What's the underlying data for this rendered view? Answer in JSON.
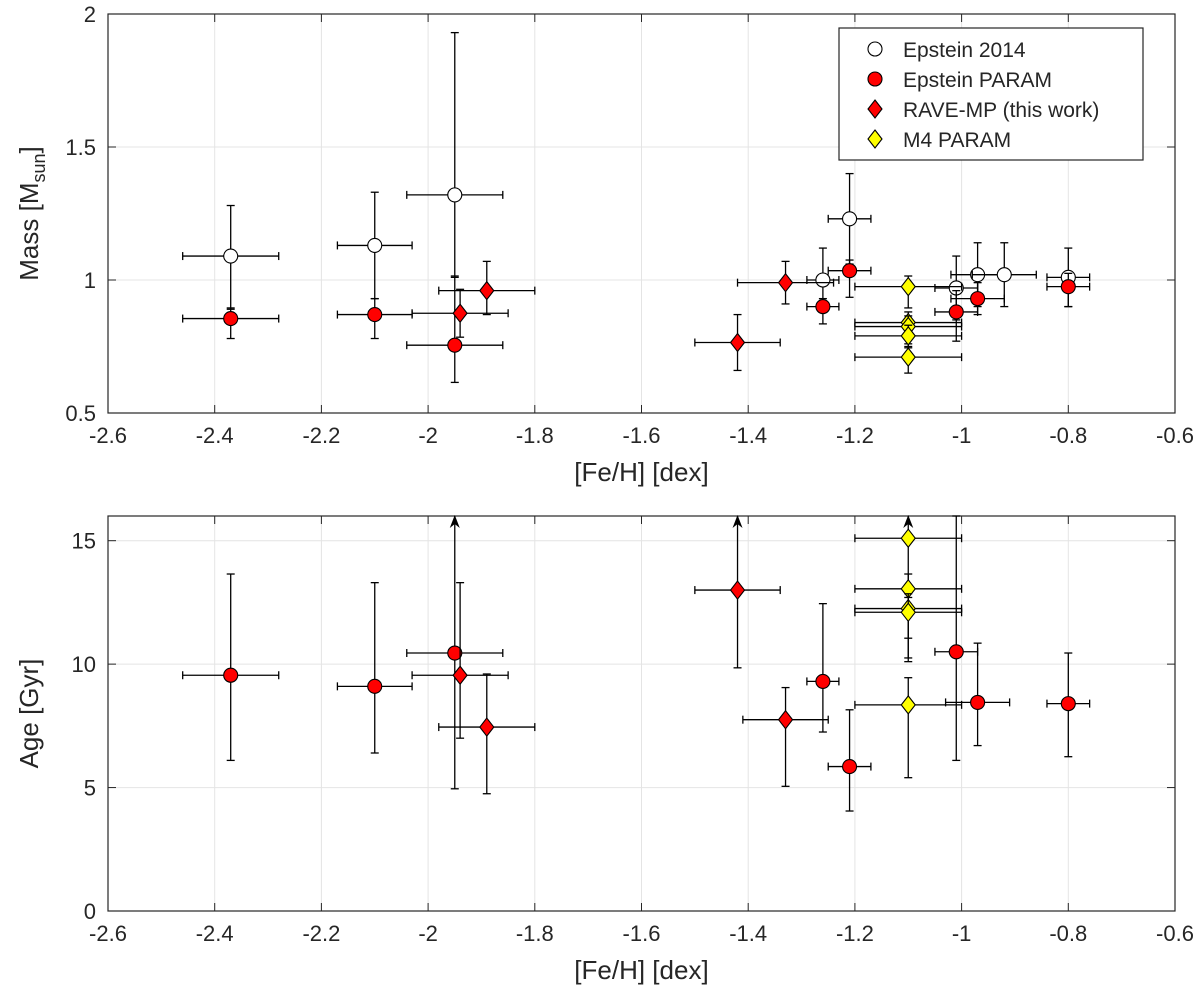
{
  "chart_data": [
    {
      "type": "scatter",
      "xlabel": "[Fe/H] [dex]",
      "ylabel": "Mass [M",
      "ylabel_sub": "sun",
      "ylabel_suffix": "]",
      "xlim": [
        -2.6,
        -0.6
      ],
      "ylim": [
        0.5,
        2
      ],
      "xticks": [
        -2.6,
        -2.4,
        -2.2,
        -2,
        -1.8,
        -1.6,
        -1.4,
        -1.2,
        -1,
        -0.8,
        -0.6
      ],
      "xtick_labels": [
        "-2.6",
        "-2.4",
        "-2.2",
        "-2",
        "-1.8",
        "-1.6",
        "-1.4",
        "-1.2",
        "-1",
        "-0.8",
        "-0.6"
      ],
      "yticks": [
        0.5,
        1,
        1.5,
        2
      ],
      "ytick_labels": [
        "0.5",
        "1",
        "1.5",
        "2"
      ],
      "grid": true,
      "legend_position": "top-right",
      "series": [
        {
          "name": "Epstein 2014",
          "marker": "circle",
          "color": "#ffffff",
          "points": [
            {
              "x": -2.37,
              "y": 1.09,
              "xerr": 0.09,
              "yerr_low": 0.2,
              "yerr_high": 0.19
            },
            {
              "x": -2.1,
              "y": 1.13,
              "xerr": 0.07,
              "yerr_low": 0.2,
              "yerr_high": 0.2
            },
            {
              "x": -1.95,
              "y": 1.32,
              "xerr": 0.09,
              "yerr_low": 0.31,
              "yerr_high": 0.61
            },
            {
              "x": -1.21,
              "y": 1.23,
              "xerr": 0.04,
              "yerr_low": 0.17,
              "yerr_high": 0.17
            },
            {
              "x": -1.26,
              "y": 1.0,
              "xerr": 0.03,
              "yerr_low": 0.12,
              "yerr_high": 0.12
            },
            {
              "x": -1.01,
              "y": 0.97,
              "xerr": 0.04,
              "yerr_low": 0.12,
              "yerr_high": 0.12
            },
            {
              "x": -0.97,
              "y": 1.02,
              "xerr": 0.05,
              "yerr_low": 0.12,
              "yerr_high": 0.12
            },
            {
              "x": -0.92,
              "y": 1.02,
              "xerr": 0.06,
              "yerr_low": 0.12,
              "yerr_high": 0.12
            },
            {
              "x": -0.8,
              "y": 1.01,
              "xerr": 0.04,
              "yerr_low": 0.11,
              "yerr_high": 0.11
            }
          ]
        },
        {
          "name": "Epstein PARAM",
          "marker": "circle",
          "color": "#ff0000",
          "points": [
            {
              "x": -2.37,
              "y": 0.855,
              "xerr": 0.09,
              "yerr_low": 0.075,
              "yerr_high": 0.04
            },
            {
              "x": -2.1,
              "y": 0.87,
              "xerr": 0.07,
              "yerr_low": 0.09,
              "yerr_high": 0.06
            },
            {
              "x": -1.95,
              "y": 0.755,
              "xerr": 0.09,
              "yerr_low": 0.14,
              "yerr_high": 0.26
            },
            {
              "x": -1.21,
              "y": 1.035,
              "xerr": 0.04,
              "yerr_low": 0.1,
              "yerr_high": 0.04
            },
            {
              "x": -1.26,
              "y": 0.9,
              "xerr": 0.03,
              "yerr_low": 0.065,
              "yerr_high": 0.03
            },
            {
              "x": -1.01,
              "y": 0.88,
              "xerr": 0.04,
              "yerr_low": 0.11,
              "yerr_high": 0.08
            },
            {
              "x": -0.97,
              "y": 0.93,
              "xerr": 0.05,
              "yerr_low": 0.06,
              "yerr_high": 0.06
            },
            {
              "x": -0.8,
              "y": 0.975,
              "xerr": 0.04,
              "yerr_low": 0.075,
              "yerr_high": 0.05
            }
          ]
        },
        {
          "name": "RAVE-MP (this work)",
          "marker": "diamond",
          "color": "#ff0000",
          "points": [
            {
              "x": -1.94,
              "y": 0.875,
              "xerr": 0.09,
              "yerr_low": 0.09,
              "yerr_high": 0.09
            },
            {
              "x": -1.89,
              "y": 0.96,
              "xerr": 0.09,
              "yerr_low": 0.09,
              "yerr_high": 0.11
            },
            {
              "x": -1.42,
              "y": 0.765,
              "xerr": 0.08,
              "yerr_low": 0.105,
              "yerr_high": 0.105
            },
            {
              "x": -1.33,
              "y": 0.99,
              "xerr": 0.09,
              "yerr_low": 0.08,
              "yerr_high": 0.08
            }
          ]
        },
        {
          "name": "M4 PARAM",
          "marker": "diamond",
          "color": "#ffff00",
          "points": [
            {
              "x": -1.1,
              "y": 0.975,
              "xerr": 0.1,
              "yerr_low": 0.08,
              "yerr_high": 0.04
            },
            {
              "x": -1.1,
              "y": 0.84,
              "xerr": 0.1,
              "yerr_low": 0.08,
              "yerr_high": 0.04
            },
            {
              "x": -1.1,
              "y": 0.825,
              "xerr": 0.1,
              "yerr_low": 0.08,
              "yerr_high": 0.04
            },
            {
              "x": -1.1,
              "y": 0.79,
              "xerr": 0.1,
              "yerr_low": 0.08,
              "yerr_high": 0.04
            },
            {
              "x": -1.1,
              "y": 0.71,
              "xerr": 0.1,
              "yerr_low": 0.06,
              "yerr_high": 0.04
            }
          ]
        }
      ]
    },
    {
      "type": "scatter",
      "xlabel": "[Fe/H] [dex]",
      "ylabel": "Age [Gyr]",
      "xlim": [
        -2.6,
        -0.6
      ],
      "ylim": [
        0,
        16
      ],
      "xticks": [
        -2.6,
        -2.4,
        -2.2,
        -2,
        -1.8,
        -1.6,
        -1.4,
        -1.2,
        -1,
        -0.8,
        -0.6
      ],
      "xtick_labels": [
        "-2.6",
        "-2.4",
        "-2.2",
        "-2",
        "-1.8",
        "-1.6",
        "-1.4",
        "-1.2",
        "-1",
        "-0.8",
        "-0.6"
      ],
      "yticks": [
        0,
        5,
        10,
        15
      ],
      "ytick_labels": [
        "0",
        "5",
        "10",
        "15"
      ],
      "grid": true,
      "series": [
        {
          "name": "Epstein PARAM",
          "marker": "circle",
          "color": "#ff0000",
          "points": [
            {
              "x": -2.37,
              "y": 9.55,
              "xerr": 0.09,
              "yerr_low": 3.45,
              "yerr_high": 4.1
            },
            {
              "x": -2.1,
              "y": 9.1,
              "xerr": 0.07,
              "yerr_low": 2.7,
              "yerr_high": 4.2
            },
            {
              "x": -1.95,
              "y": 10.45,
              "xerr": 0.09,
              "yerr_low": 5.5,
              "yerr_high": 5.55,
              "upper_arrow": true
            },
            {
              "x": -1.26,
              "y": 9.3,
              "xerr": 0.03,
              "yerr_low": 2.05,
              "yerr_high": 3.15
            },
            {
              "x": -1.21,
              "y": 5.85,
              "xerr": 0.04,
              "yerr_low": 1.8,
              "yerr_high": 2.3
            },
            {
              "x": -1.01,
              "y": 10.5,
              "xerr": 0.04,
              "yerr_low": 4.4,
              "yerr_high": 5.5
            },
            {
              "x": -0.97,
              "y": 8.45,
              "xerr": 0.06,
              "yerr_low": 1.75,
              "yerr_high": 2.4
            },
            {
              "x": -0.8,
              "y": 8.4,
              "xerr": 0.04,
              "yerr_low": 2.15,
              "yerr_high": 2.05
            }
          ]
        },
        {
          "name": "RAVE-MP (this work)",
          "marker": "diamond",
          "color": "#ff0000",
          "points": [
            {
              "x": -1.94,
              "y": 9.55,
              "xerr": 0.09,
              "yerr_low": 2.55,
              "yerr_high": 3.75
            },
            {
              "x": -1.89,
              "y": 7.45,
              "xerr": 0.09,
              "yerr_low": 2.7,
              "yerr_high": 2.15
            },
            {
              "x": -1.42,
              "y": 13.0,
              "xerr": 0.08,
              "yerr_low": 3.15,
              "yerr_high": 2.65,
              "upper_arrow": true
            },
            {
              "x": -1.33,
              "y": 7.75,
              "xerr": 0.08,
              "yerr_low": 2.7,
              "yerr_high": 1.3
            }
          ]
        },
        {
          "name": "M4 PARAM",
          "marker": "diamond",
          "color": "#ffff00",
          "points": [
            {
              "x": -1.1,
              "y": 15.1,
              "xerr": 0.1,
              "yerr_low": 2.0,
              "yerr_high": 0.55,
              "upper_arrow": true
            },
            {
              "x": -1.1,
              "y": 13.05,
              "xerr": 0.1,
              "yerr_low": 2.0,
              "yerr_high": 0.6
            },
            {
              "x": -1.1,
              "y": 12.25,
              "xerr": 0.1,
              "yerr_low": 2.0,
              "yerr_high": 0.6
            },
            {
              "x": -1.1,
              "y": 12.1,
              "xerr": 0.1,
              "yerr_low": 2.0,
              "yerr_high": 0.6
            },
            {
              "x": -1.1,
              "y": 8.35,
              "xerr": 0.1,
              "yerr_low": 2.95,
              "yerr_high": 1.1
            }
          ]
        }
      ]
    }
  ]
}
